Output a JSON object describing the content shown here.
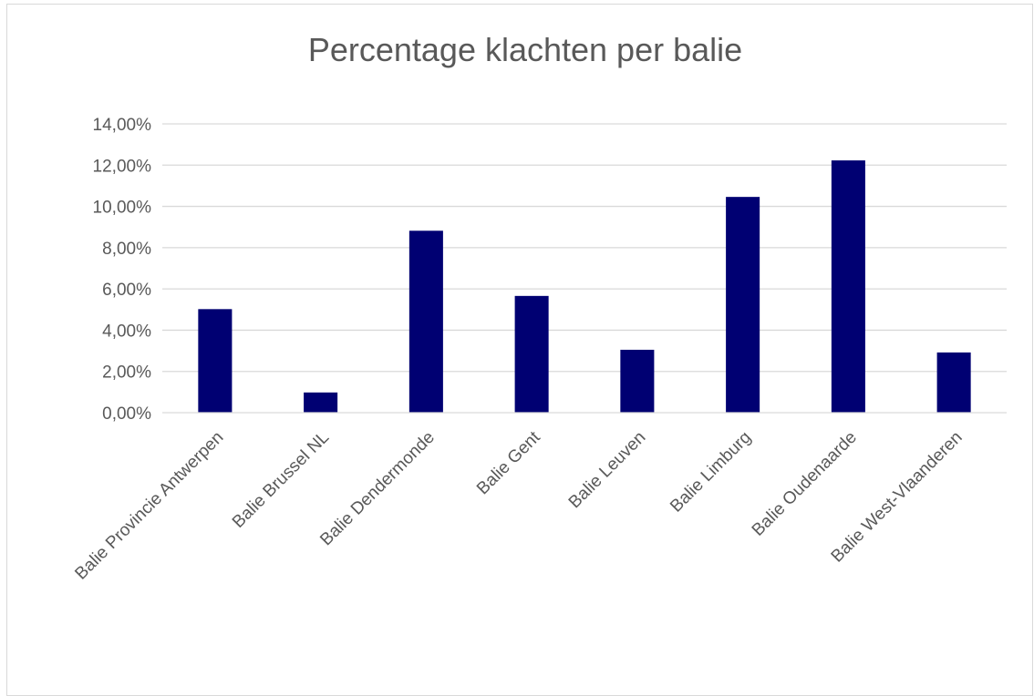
{
  "chart_data": {
    "type": "bar",
    "title": "Percentage klachten per balie",
    "xlabel": "",
    "ylabel": "",
    "categories": [
      "Balie Provincie Antwerpen",
      "Balie Brussel NL",
      "Balie Dendermonde",
      "Balie Gent",
      "Balie Leuven",
      "Balie Limburg",
      "Balie Oudenaarde",
      "Balie West-Vlaanderen"
    ],
    "values": [
      0.0502,
      0.0098,
      0.0882,
      0.0566,
      0.0305,
      0.1046,
      0.1223,
      0.0292
    ],
    "ylim": [
      0,
      0.14
    ],
    "yticks": [
      0,
      0.02,
      0.04,
      0.06,
      0.08,
      0.1,
      0.12,
      0.14
    ],
    "ytick_labels": [
      "0,00%",
      "2,00%",
      "4,00%",
      "6,00%",
      "8,00%",
      "10,00%",
      "12,00%",
      "14,00%"
    ],
    "grid": true,
    "legend": "none",
    "bar_color": "#000072",
    "grid_color": "#d9d9d9",
    "text_color": "#595959"
  }
}
